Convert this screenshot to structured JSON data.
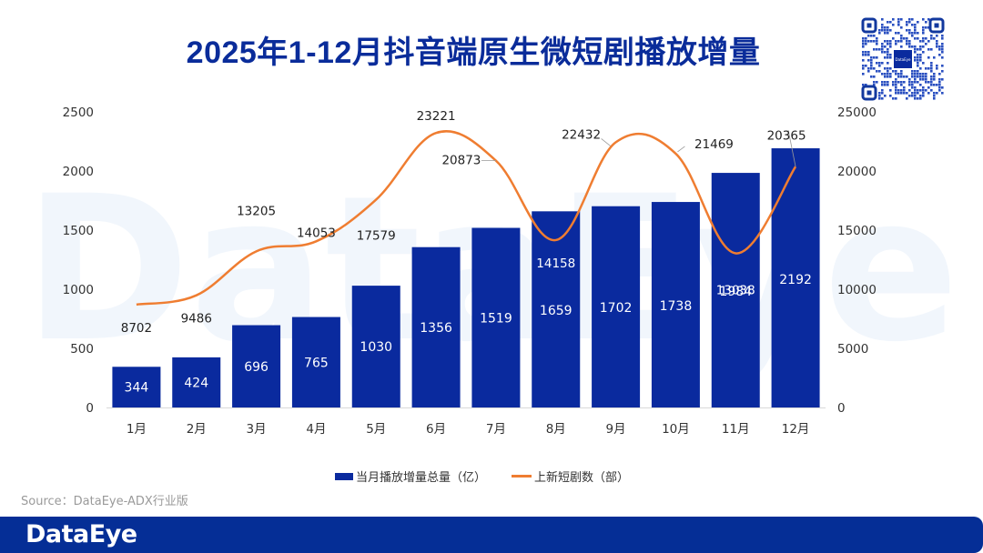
{
  "page": {
    "title": "2025年1-12月抖音端原生微短剧播放增量",
    "source": "Source：DataEye-ADX行业版",
    "brand_logo": "DataEye",
    "qr_label": "DataEye",
    "watermark": "DataEye"
  },
  "colors": {
    "bar": "#0a2a9e",
    "line": "#ef7d31",
    "title": "#0a2c9a",
    "banner": "#052e96",
    "axis_text": "#333333"
  },
  "chart_data": {
    "type": "bar+line",
    "title": "2025年1-12月抖音端原生微短剧播放增量",
    "categories": [
      "1月",
      "2月",
      "3月",
      "4月",
      "5月",
      "6月",
      "7月",
      "8月",
      "9月",
      "10月",
      "11月",
      "12月"
    ],
    "series": [
      {
        "name": "当月播放增量总量（亿）",
        "type": "bar",
        "axis": "left",
        "values": [
          344,
          424,
          696,
          765,
          1030,
          1356,
          1519,
          1659,
          1702,
          1738,
          1984,
          2192
        ]
      },
      {
        "name": "上新短剧数（部）",
        "type": "line",
        "axis": "right",
        "smooth": true,
        "values": [
          8702,
          9486,
          13205,
          14053,
          17579,
          23221,
          20873,
          14158,
          22432,
          21469,
          13038,
          20365
        ]
      }
    ],
    "y_left": {
      "min": 0,
      "max": 2500,
      "ticks": [
        "0",
        "500",
        "1000",
        "1500",
        "2000",
        "2500"
      ]
    },
    "y_right": {
      "min": 0,
      "max": 25000,
      "ticks": [
        "0",
        "5000",
        "10000",
        "15000",
        "20000",
        "25000"
      ]
    },
    "grid": false,
    "legend": "bottom-center",
    "legend_labels": [
      "当月播放增量总量（亿）",
      "上新短剧数（部）"
    ]
  }
}
